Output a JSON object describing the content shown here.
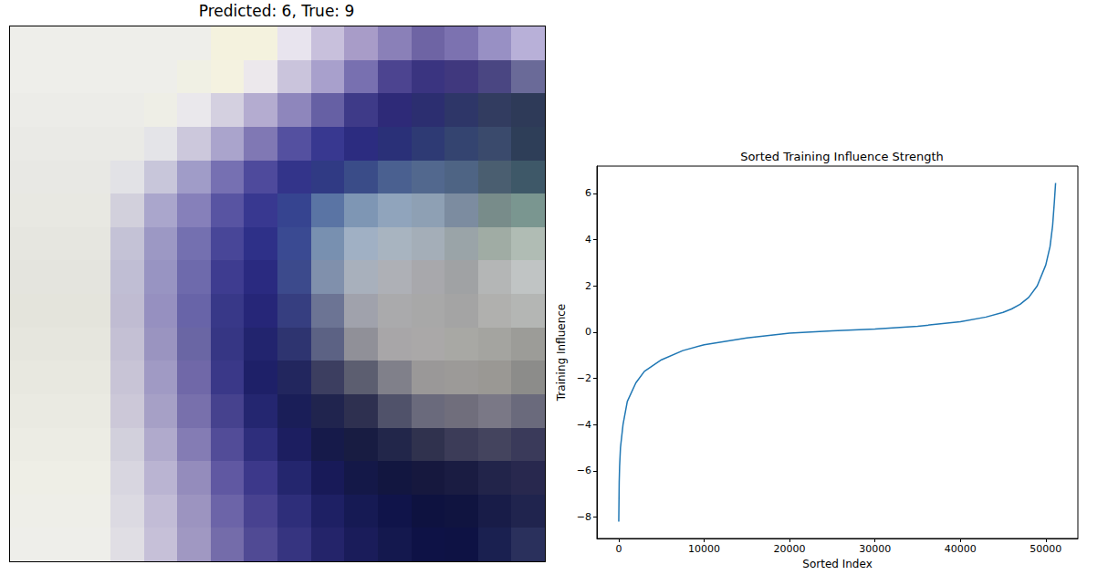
{
  "chart_data": [
    {
      "type": "image",
      "title": "Predicted: 6, True: 9",
      "tick_labels": false,
      "pixels": [
        [
          "#eeeeea",
          "#eeeeea",
          "#eeeeea",
          "#eeeeea",
          "#eeeeea",
          "#eeeeea",
          "#f4f2de",
          "#f4f2de",
          "#e8e4ee",
          "#c8c0dc",
          "#a89cc8",
          "#8a80b8",
          "#6e64a4",
          "#7c72b0",
          "#9890c4",
          "#b8b0d8"
        ],
        [
          "#eeeeea",
          "#eeeeea",
          "#eeeeea",
          "#eeeeea",
          "#eeeeea",
          "#f0f0e4",
          "#f4f2e0",
          "#ece8ec",
          "#cac4dc",
          "#a8a0cc",
          "#7870b0",
          "#4c4490",
          "#3a3480",
          "#40387e",
          "#4a4682",
          "#6a6a98"
        ],
        [
          "#ecece8",
          "#ecece8",
          "#ecece8",
          "#ecece8",
          "#eeeee6",
          "#eae8ec",
          "#d4d0e0",
          "#b4acd0",
          "#8e86bc",
          "#6660a4",
          "#3e3a88",
          "#2e2a78",
          "#2c2e70",
          "#2e3668",
          "#323c60",
          "#2e3a58"
        ],
        [
          "#eaeae6",
          "#eaeae6",
          "#eaeae6",
          "#eaeae6",
          "#e4e4e8",
          "#ccc8dc",
          "#aaa4cc",
          "#8078b4",
          "#5450a0",
          "#383890",
          "#2c2c80",
          "#2a3078",
          "#2e3a74",
          "#344470",
          "#3a4a6c",
          "#2e3e58"
        ],
        [
          "#e8e8e4",
          "#e8e8e4",
          "#e8e8e4",
          "#e2e2e6",
          "#c8c6da",
          "#a09cc8",
          "#7670b2",
          "#4e4a9c",
          "#33348a",
          "#303a84",
          "#3a4c88",
          "#4a6090",
          "#52688e",
          "#4e6484",
          "#4a5e70",
          "#3e5868"
        ],
        [
          "#e8e8e2",
          "#e8e8e2",
          "#e8e8e2",
          "#d2d0dc",
          "#aaa6cc",
          "#8680ba",
          "#5854a2",
          "#383890",
          "#364490",
          "#5a74a4",
          "#7e96b4",
          "#90a4bc",
          "#8ea0b4",
          "#7c8ca0",
          "#788c8a",
          "#7a9690"
        ],
        [
          "#e6e6e0",
          "#e6e6e0",
          "#e6e6e0",
          "#c4c2d6",
          "#9c98c4",
          "#7470b0",
          "#484698",
          "#2e3088",
          "#3a4a92",
          "#7890b0",
          "#a0b0c4",
          "#a8b4c0",
          "#a4aeb8",
          "#9aa4a8",
          "#a0aca4",
          "#b0bcb4"
        ],
        [
          "#e4e4de",
          "#e4e4de",
          "#e4e4de",
          "#c0bed4",
          "#9894c2",
          "#6e6aac",
          "#3e3c90",
          "#2a2a80",
          "#3c4a8c",
          "#8090ac",
          "#a8b0bc",
          "#aeb0b6",
          "#a8a8ac",
          "#a0a2a4",
          "#b4b6b6",
          "#c0c4c4"
        ],
        [
          "#e4e4dc",
          "#e4e4dc",
          "#e4e4dc",
          "#c0bcd2",
          "#9690c0",
          "#6864a8",
          "#383888",
          "#262678",
          "#363e80",
          "#6c7494",
          "#a0a2ac",
          "#aaaaac",
          "#a8a8a8",
          "#a4a4a4",
          "#b0b0ae",
          "#b4b6b4"
        ],
        [
          "#e6e6de",
          "#e6e6de",
          "#e6e6de",
          "#c4c0d4",
          "#9a94c0",
          "#6a66a4",
          "#363684",
          "#22246e",
          "#2e3470",
          "#5c6284",
          "#909098",
          "#a8a6a8",
          "#aaa8a8",
          "#a8a8a4",
          "#a4a4a0",
          "#9c9c98"
        ],
        [
          "#e8e8e0",
          "#e8e8e0",
          "#e8e8e0",
          "#c8c4d6",
          "#a09ac4",
          "#7068a8",
          "#3a3888",
          "#1e2068",
          "#22265e",
          "#3c3e60",
          "#5c5e70",
          "#80808a",
          "#9a9898",
          "#9c9a98",
          "#9a9894",
          "#8c8c8a"
        ],
        [
          "#eaeae2",
          "#eaeae2",
          "#eaeae2",
          "#ccc8d8",
          "#a6a0c6",
          "#7870ac",
          "#46428e",
          "#242670",
          "#1a1e58",
          "#20244e",
          "#2e3050",
          "#50526a",
          "#6a6a7c",
          "#706e7c",
          "#7a7886",
          "#6a6a7c"
        ],
        [
          "#ecece4",
          "#ecece4",
          "#ecece4",
          "#d2d0dc",
          "#b0aacc",
          "#847cb4",
          "#524c98",
          "#2e2e7c",
          "#1c1e60",
          "#161a4a",
          "#181c42",
          "#22264a",
          "#30324e",
          "#3c3c58",
          "#44445e",
          "#3a3a5a"
        ],
        [
          "#eeeee6",
          "#eeeee6",
          "#eeeee6",
          "#d8d6e0",
          "#bab4d2",
          "#948cbc",
          "#6058a2",
          "#3c388a",
          "#24266e",
          "#181a58",
          "#141848",
          "#121640",
          "#16183e",
          "#1a1c42",
          "#22244a",
          "#28284e"
        ],
        [
          "#eeeee8",
          "#eeeee8",
          "#eeeee8",
          "#dcdae2",
          "#c2bcd6",
          "#9c94c0",
          "#6c64a8",
          "#484290",
          "#2e2e7a",
          "#1e2064",
          "#161a54",
          "#10144a",
          "#0e1240",
          "#101440",
          "#181c48",
          "#20244e"
        ],
        [
          "#eeeeea",
          "#eeeeea",
          "#eeeeea",
          "#e0dee4",
          "#c6c0d8",
          "#a098c2",
          "#746caa",
          "#504a94",
          "#363480",
          "#24246a",
          "#1a1c5a",
          "#14184e",
          "#0e1246",
          "#0e1244",
          "#1a2050",
          "#2a305c"
        ]
      ]
    },
    {
      "type": "line",
      "title": "Sorted Training Influence Strength",
      "x_label": "Sorted Index",
      "y_label": "Training Influence",
      "color": "#1f77b4",
      "grid": false,
      "x": [
        0,
        50,
        100,
        200,
        500,
        1000,
        2000,
        3000,
        5000,
        7500,
        10000,
        15000,
        20000,
        25000,
        30000,
        35000,
        40000,
        43000,
        45000,
        46000,
        47000,
        48000,
        49000,
        50000,
        50500,
        50800,
        51000,
        51150
      ],
      "values": [
        -8.2,
        -6.5,
        -5.8,
        -5.0,
        -4.0,
        -3.0,
        -2.2,
        -1.7,
        -1.2,
        -0.8,
        -0.55,
        -0.25,
        -0.05,
        0.05,
        0.13,
        0.25,
        0.45,
        0.65,
        0.85,
        1.0,
        1.2,
        1.5,
        2.0,
        2.9,
        3.7,
        4.6,
        5.6,
        6.45
      ],
      "xlim": [
        -2560,
        53760
      ],
      "ylim": [
        -8.93,
        7.18
      ],
      "xticks": [
        0,
        10000,
        20000,
        30000,
        40000,
        50000
      ],
      "yticks": [
        {
          "value": -8,
          "label": "−8"
        },
        {
          "value": -6,
          "label": "−6"
        },
        {
          "value": -4,
          "label": "−4"
        },
        {
          "value": -2,
          "label": "−2"
        },
        0,
        2,
        4,
        6
      ]
    }
  ]
}
